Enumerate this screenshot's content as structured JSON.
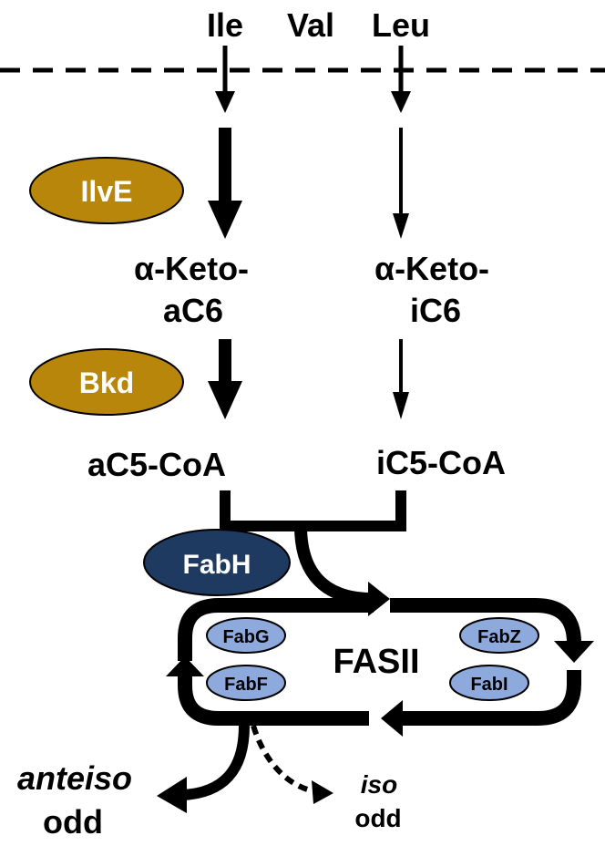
{
  "amino_acids": {
    "ile": "Ile",
    "val": "Val",
    "leu": "Leu"
  },
  "intermediates": {
    "keto_ac6_line1": "α-Keto-",
    "keto_ac6_line2": "aC6",
    "keto_ic6_line1": "α-Keto-",
    "keto_ic6_line2": "iC6",
    "ac5_coa": "aC5-CoA",
    "ic5_coa": "iC5-CoA"
  },
  "enzymes": {
    "ilve": "IlvE",
    "bkd": "Bkd",
    "fabh": "FabH",
    "fabg": "FabG",
    "fabf": "FabF",
    "fabz": "FabZ",
    "fabi": "FabI"
  },
  "cycle": {
    "label": "FASII"
  },
  "products": {
    "anteiso_line1": "anteiso",
    "anteiso_line2": "odd",
    "iso_line1": "iso",
    "iso_line2": "odd"
  },
  "colors": {
    "gold_enzyme": "#B8860B",
    "navy_enzyme": "#1F3A60",
    "light_blue_enzyme": "#8EA9DB",
    "arrow": "#000000"
  }
}
